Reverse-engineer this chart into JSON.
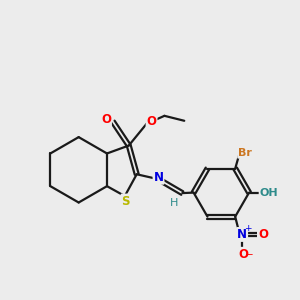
{
  "background_color": "#ececec",
  "bond_color": "#1a1a1a",
  "atom_colors": {
    "O": "#ff0000",
    "N": "#0000e0",
    "S": "#b8b800",
    "Br": "#cc7722",
    "OH": "#2e8b8b",
    "H": "#2e8b8b",
    "Nplus": "#0000e0",
    "Ominus": "#ff0000"
  },
  "figsize": [
    3.0,
    3.0
  ],
  "dpi": 100
}
